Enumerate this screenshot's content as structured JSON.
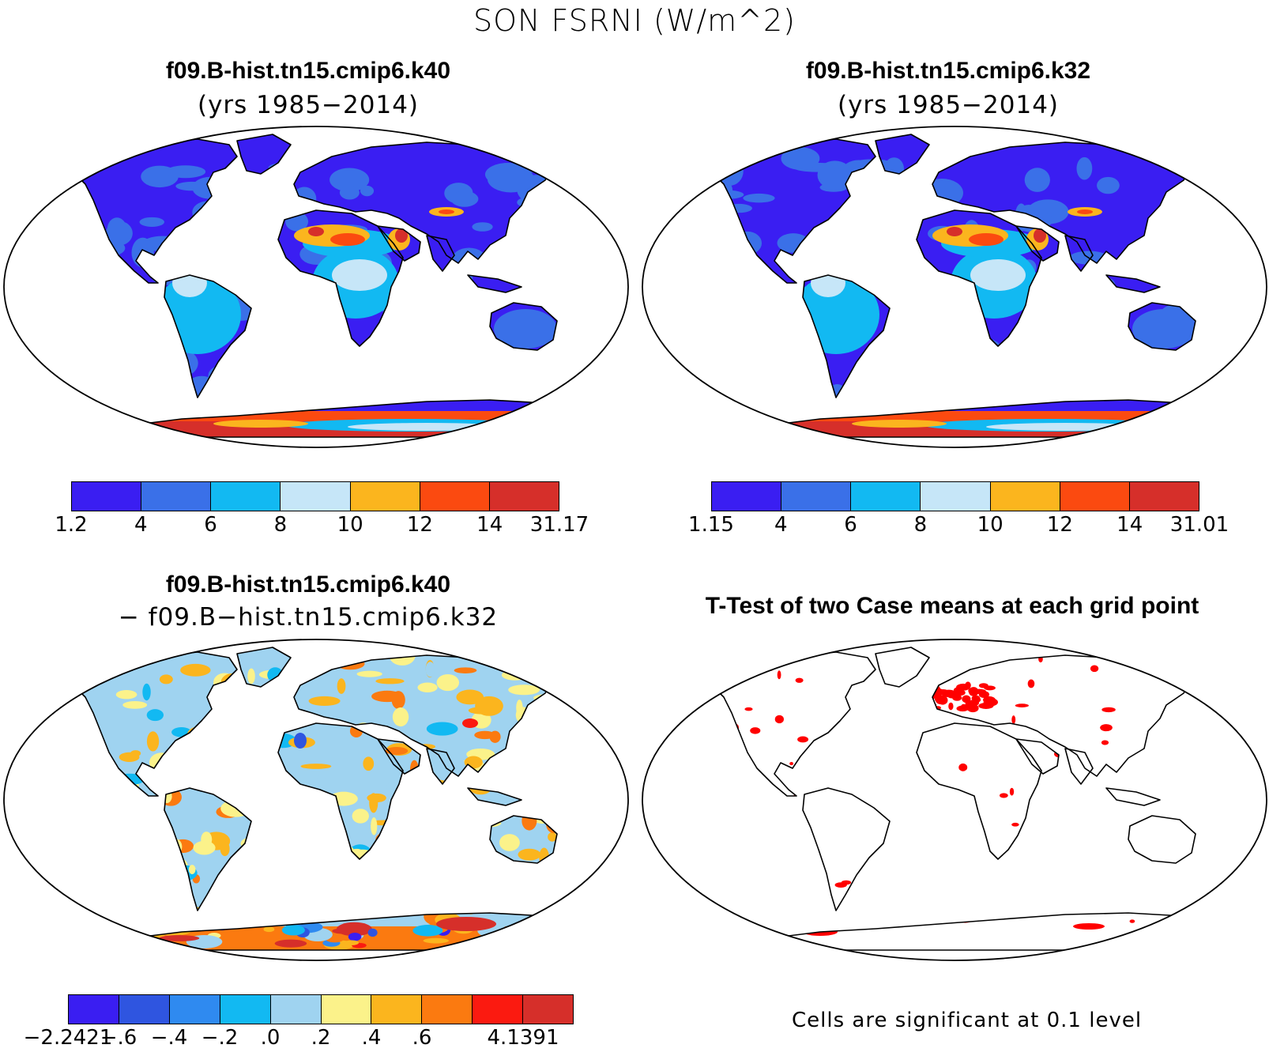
{
  "title": "SON FSRNI (W/m^2)",
  "panels": [
    {
      "title": "f09.B-hist.tn15.cmip6.k40",
      "subtitle": "(yrs 1985−2014)"
    },
    {
      "title": "f09.B-hist.tn15.cmip6.k32",
      "subtitle": "(yrs 1985−2014)"
    },
    {
      "title": "f09.B-hist.tn15.cmip6.k40",
      "subtitle": "− f09.B−hist.tn15.cmip6.k32"
    },
    {
      "title": "T-Test of two Case means at each grid point",
      "subtitle": ""
    }
  ],
  "colorbars": [
    {
      "labels": [
        "1.2",
        "4",
        "6",
        "8",
        "10",
        "12",
        "14",
        "31.17"
      ],
      "colors": [
        "#3a1ef2",
        "#3a70e8",
        "#12b9f2",
        "#c6e6f8",
        "#fbb51e",
        "#fb4a10",
        "#d62f2a"
      ]
    },
    {
      "labels": [
        "1.15",
        "4",
        "6",
        "8",
        "10",
        "12",
        "14",
        "31.01"
      ],
      "colors": [
        "#3a1ef2",
        "#3a70e8",
        "#12b9f2",
        "#c6e6f8",
        "#fbb51e",
        "#fb4a10",
        "#d62f2a"
      ]
    },
    {
      "labels": [
        "−2.2421",
        "−.6",
        "−.4",
        "−.2",
        ".0",
        ".2",
        ".4",
        ".6",
        "",
        "4.1391"
      ],
      "colors": [
        "#3a1ef2",
        "#2f55e0",
        "#2f8af0",
        "#12b9f2",
        "#9fd3f0",
        "#fbf28a",
        "#fbb51e",
        "#fb7a10",
        "#fb1a10",
        "#d62f2a"
      ]
    }
  ],
  "significance_note": "Cells are significant at 0.1 level",
  "significance_color": "#ff0000"
}
